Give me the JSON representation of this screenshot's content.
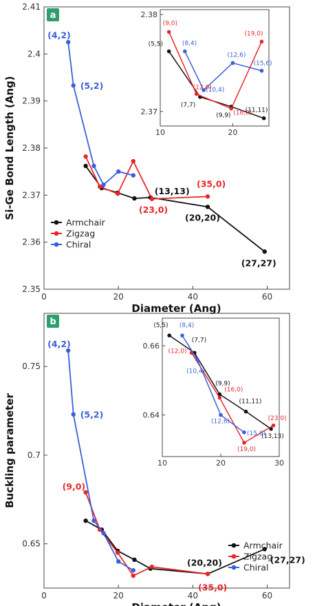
{
  "colors": {
    "Armchair": "#111111",
    "Zigzag": "#e8262a",
    "Chiral": "#3a5fd9",
    "badge": "#2e9e6e"
  },
  "chart_data": [
    {
      "id": "a",
      "panel_label": "a",
      "type": "line",
      "xlabel": "Diameter (Ang)",
      "ylabel": "Si-Ge Bond Length (Ang)",
      "xlim": [
        0,
        66
      ],
      "ylim": [
        2.35,
        2.41
      ],
      "xticks": [
        0,
        20,
        40,
        60
      ],
      "yticks": [
        2.35,
        2.36,
        2.37,
        2.38,
        2.39,
        2.4,
        2.41
      ],
      "ytick_labels": [
        "2.35",
        "2.36",
        "2.37",
        "2.38",
        "2.39",
        "2.4",
        "2.41"
      ],
      "legend": {
        "position": "bottom-left",
        "entries": [
          "Armchair",
          "Zigzag",
          "Chiral"
        ]
      },
      "series": [
        {
          "name": "Armchair",
          "x": [
            11.2,
            15.5,
            19.8,
            24.3,
            28.6,
            44.0,
            59.3
          ],
          "y": [
            2.3762,
            2.3715,
            2.3705,
            2.3693,
            2.3695,
            2.3675,
            2.358
          ]
        },
        {
          "name": "Zigzag",
          "x": [
            11.2,
            15.0,
            19.8,
            24.0,
            29.0,
            44.0
          ],
          "y": [
            2.3782,
            2.3718,
            2.3703,
            2.3772,
            2.3692,
            2.3697
          ]
        },
        {
          "name": "Chiral",
          "x": [
            6.5,
            7.9,
            13.4,
            16.0,
            20.0,
            24.0
          ],
          "y": [
            2.4025,
            2.3933,
            2.3762,
            2.3722,
            2.375,
            2.3742
          ]
        }
      ],
      "annotations": [
        {
          "text": "(4,2)",
          "x": 6.5,
          "y": 2.4025,
          "color": "Chiral"
        },
        {
          "text": "(5,2)",
          "x": 7.9,
          "y": 2.3933,
          "color": "Chiral"
        },
        {
          "text": "(13,13)",
          "x": 28.6,
          "y": 2.3695,
          "color": "Armchair"
        },
        {
          "text": "(35,0)",
          "x": 44.0,
          "y": 2.3697,
          "color": "Zigzag"
        },
        {
          "text": "(23,0)",
          "x": 29.0,
          "y": 2.3692,
          "color": "Zigzag"
        },
        {
          "text": "(20,20)",
          "x": 44.0,
          "y": 2.3675,
          "color": "Armchair"
        },
        {
          "text": "(27,27)",
          "x": 59.3,
          "y": 2.358,
          "color": "Armchair"
        }
      ],
      "inset": {
        "xlim": [
          10,
          25
        ],
        "ylim": [
          2.3685,
          2.3805
        ],
        "xticks": [
          10,
          20
        ],
        "yticks": [
          2.37,
          2.38
        ],
        "ytick_labels": [
          "2.37",
          "2.38"
        ],
        "series": [
          {
            "name": "Armchair",
            "x": [
              11.2,
              15.5,
              19.8,
              24.3
            ],
            "y": [
              2.3762,
              2.3715,
              2.3705,
              2.3693
            ]
          },
          {
            "name": "Zigzag",
            "x": [
              11.2,
              15.0,
              19.8,
              24.0
            ],
            "y": [
              2.3782,
              2.3718,
              2.3703,
              2.3772
            ]
          },
          {
            "name": "Chiral",
            "x": [
              13.4,
              16.0,
              20.0,
              24.0
            ],
            "y": [
              2.3762,
              2.3722,
              2.375,
              2.3742
            ]
          }
        ],
        "annotations": [
          {
            "text": "(9,0)",
            "x": 11.2,
            "y": 2.3782,
            "color": "Zigzag"
          },
          {
            "text": "(5,5)",
            "x": 11.2,
            "y": 2.3762,
            "color": "Armchair"
          },
          {
            "text": "(8,4)",
            "x": 13.4,
            "y": 2.3762,
            "color": "Chiral"
          },
          {
            "text": "(12,0)",
            "x": 15.0,
            "y": 2.3718,
            "color": "Zigzag"
          },
          {
            "text": "(7,7)",
            "x": 15.5,
            "y": 2.3715,
            "color": "Armchair"
          },
          {
            "text": "(10,4)",
            "x": 16.0,
            "y": 2.3722,
            "color": "Chiral"
          },
          {
            "text": "(12,6)",
            "x": 20.0,
            "y": 2.375,
            "color": "Chiral"
          },
          {
            "text": "(16,0)",
            "x": 19.8,
            "y": 2.3703,
            "color": "Zigzag"
          },
          {
            "text": "(9,9)",
            "x": 19.8,
            "y": 2.3705,
            "color": "Armchair"
          },
          {
            "text": "(19,0)",
            "x": 24.0,
            "y": 2.3772,
            "color": "Zigzag"
          },
          {
            "text": "(15,6)",
            "x": 24.0,
            "y": 2.3742,
            "color": "Chiral"
          },
          {
            "text": "(11,11)",
            "x": 24.3,
            "y": 2.3693,
            "color": "Armchair"
          }
        ]
      }
    },
    {
      "id": "b",
      "panel_label": "b",
      "type": "line",
      "xlabel": "Diameter (Ang)",
      "ylabel": "Buckling parameter",
      "xlim": [
        0,
        66
      ],
      "ylim": [
        0.625,
        0.78
      ],
      "xticks": [
        0,
        20,
        40,
        60
      ],
      "yticks": [
        0.65,
        0.7,
        0.75
      ],
      "ytick_labels": [
        "0.65",
        "0.7",
        "0.75"
      ],
      "legend": {
        "position": "bottom-right",
        "entries": [
          "Armchair",
          "Zigzag",
          "Chiral"
        ]
      },
      "series": [
        {
          "name": "Armchair",
          "x": [
            11.2,
            15.5,
            19.8,
            24.3,
            28.6,
            44.0,
            59.3
          ],
          "y": [
            0.663,
            0.658,
            0.646,
            0.641,
            0.636,
            0.633,
            0.647
          ]
        },
        {
          "name": "Zigzag",
          "x": [
            11.2,
            15.0,
            19.8,
            24.0,
            29.0,
            44.0
          ],
          "y": [
            0.679,
            0.658,
            0.645,
            0.632,
            0.637,
            0.633
          ]
        },
        {
          "name": "Chiral",
          "x": [
            6.5,
            7.9,
            13.4,
            16.0,
            20.0,
            24.0
          ],
          "y": [
            0.759,
            0.723,
            0.663,
            0.656,
            0.64,
            0.635
          ]
        }
      ],
      "annotations": [
        {
          "text": "(4,2)",
          "x": 6.5,
          "y": 0.759,
          "color": "Chiral"
        },
        {
          "text": "(5,2)",
          "x": 7.9,
          "y": 0.723,
          "color": "Chiral"
        },
        {
          "text": "(9,0)",
          "x": 11.2,
          "y": 0.679,
          "color": "Zigzag"
        },
        {
          "text": "(20,20)",
          "x": 44.0,
          "y": 0.633,
          "color": "Armchair"
        },
        {
          "text": "(27,27)",
          "x": 59.3,
          "y": 0.647,
          "color": "Armchair"
        },
        {
          "text": "(35,0)",
          "x": 44.0,
          "y": 0.633,
          "color": "Zigzag"
        }
      ],
      "inset": {
        "xlim": [
          10,
          30
        ],
        "ylim": [
          0.628,
          0.668
        ],
        "xticks": [
          10,
          20,
          30
        ],
        "yticks": [
          0.64,
          0.66
        ],
        "ytick_labels": [
          "0.64",
          "0.66"
        ],
        "series": [
          {
            "name": "Armchair",
            "x": [
              11.2,
              15.5,
              19.8,
              24.3,
              28.6
            ],
            "y": [
              0.663,
              0.658,
              0.646,
              0.641,
              0.636
            ]
          },
          {
            "name": "Zigzag",
            "x": [
              15.0,
              19.8,
              24.0,
              29.0
            ],
            "y": [
              0.658,
              0.645,
              0.632,
              0.637
            ]
          },
          {
            "name": "Chiral",
            "x": [
              13.4,
              16.0,
              20.0,
              24.0
            ],
            "y": [
              0.663,
              0.656,
              0.64,
              0.635
            ]
          }
        ],
        "annotations": [
          {
            "text": "(5,5)",
            "x": 11.2,
            "y": 0.663,
            "color": "Armchair"
          },
          {
            "text": "(8,4)",
            "x": 13.4,
            "y": 0.663,
            "color": "Chiral"
          },
          {
            "text": "(7,7)",
            "x": 15.5,
            "y": 0.658,
            "color": "Armchair"
          },
          {
            "text": "(12,0)",
            "x": 15.0,
            "y": 0.658,
            "color": "Zigzag"
          },
          {
            "text": "(10,4)",
            "x": 16.0,
            "y": 0.656,
            "color": "Chiral"
          },
          {
            "text": "(9,9)",
            "x": 19.8,
            "y": 0.646,
            "color": "Armchair"
          },
          {
            "text": "(16,0)",
            "x": 19.8,
            "y": 0.645,
            "color": "Zigzag"
          },
          {
            "text": "(11,11)",
            "x": 24.3,
            "y": 0.641,
            "color": "Armchair"
          },
          {
            "text": "(12,6)",
            "x": 20.0,
            "y": 0.64,
            "color": "Chiral"
          },
          {
            "text": "(15,6)",
            "x": 24.0,
            "y": 0.635,
            "color": "Chiral"
          },
          {
            "text": "(19,0)",
            "x": 24.0,
            "y": 0.632,
            "color": "Zigzag"
          },
          {
            "text": "(23,0)",
            "x": 29.0,
            "y": 0.637,
            "color": "Zigzag"
          },
          {
            "text": "(13,13)",
            "x": 28.6,
            "y": 0.636,
            "color": "Armchair"
          }
        ]
      }
    }
  ]
}
